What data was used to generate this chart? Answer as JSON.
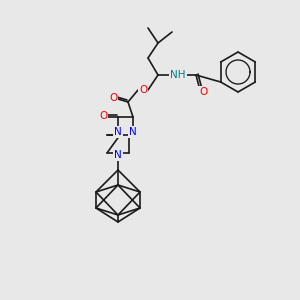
{
  "background_color": "#e8e8e8",
  "line_color": "#1a1a1a",
  "atom_colors": {
    "N": "#0000ff",
    "O": "#ff0000",
    "H": "#008080",
    "C": "#1a1a1a"
  },
  "font_size": 7.5,
  "line_width": 1.2
}
